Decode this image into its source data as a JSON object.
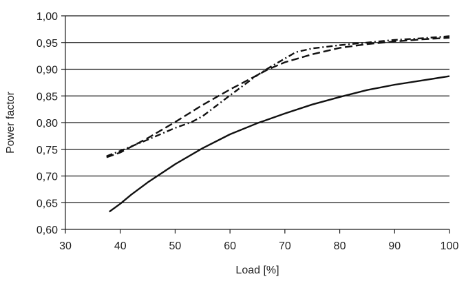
{
  "chart_data": {
    "type": "line",
    "xlabel": "Load [%]",
    "ylabel": "Power factor",
    "xlim": [
      30,
      100
    ],
    "ylim": [
      0.6,
      1.0
    ],
    "x_ticks": [
      30,
      40,
      50,
      60,
      70,
      80,
      90,
      100
    ],
    "x_tick_labels": [
      "30",
      "40",
      "50",
      "60",
      "70",
      "80",
      "90",
      "100"
    ],
    "y_ticks": [
      0.6,
      0.65,
      0.7,
      0.75,
      0.8,
      0.85,
      0.9,
      0.95,
      1.0
    ],
    "y_tick_labels": [
      "0,60",
      "0,65",
      "0,70",
      "0,75",
      "0,80",
      "0,85",
      "0,90",
      "0,95",
      "1,00"
    ],
    "grid": "horizontal",
    "legend": "none",
    "series": [
      {
        "style": "solid",
        "color": "#111111",
        "x": [
          38,
          40,
          42,
          45,
          50,
          55,
          60,
          65,
          70,
          75,
          80,
          85,
          90,
          95,
          100
        ],
        "y": [
          0.633,
          0.648,
          0.665,
          0.688,
          0.722,
          0.752,
          0.778,
          0.799,
          0.817,
          0.834,
          0.848,
          0.861,
          0.871,
          0.879,
          0.887
        ]
      },
      {
        "style": "dashed",
        "color": "#111111",
        "x": [
          37.5,
          40,
          45,
          50,
          55,
          60,
          65,
          67,
          70,
          75,
          80,
          85,
          90,
          95,
          100
        ],
        "y": [
          0.735,
          0.744,
          0.771,
          0.801,
          0.833,
          0.862,
          0.889,
          0.9,
          0.913,
          0.928,
          0.94,
          0.947,
          0.952,
          0.956,
          0.959
        ]
      },
      {
        "style": "dash-dot",
        "color": "#111111",
        "x": [
          37.5,
          40,
          45,
          50,
          53,
          55,
          60,
          65,
          67,
          70,
          72,
          75,
          80,
          85,
          90,
          95,
          100
        ],
        "y": [
          0.737,
          0.747,
          0.768,
          0.79,
          0.801,
          0.812,
          0.851,
          0.889,
          0.902,
          0.92,
          0.932,
          0.939,
          0.945,
          0.95,
          0.955,
          0.958,
          0.962
        ]
      }
    ]
  }
}
